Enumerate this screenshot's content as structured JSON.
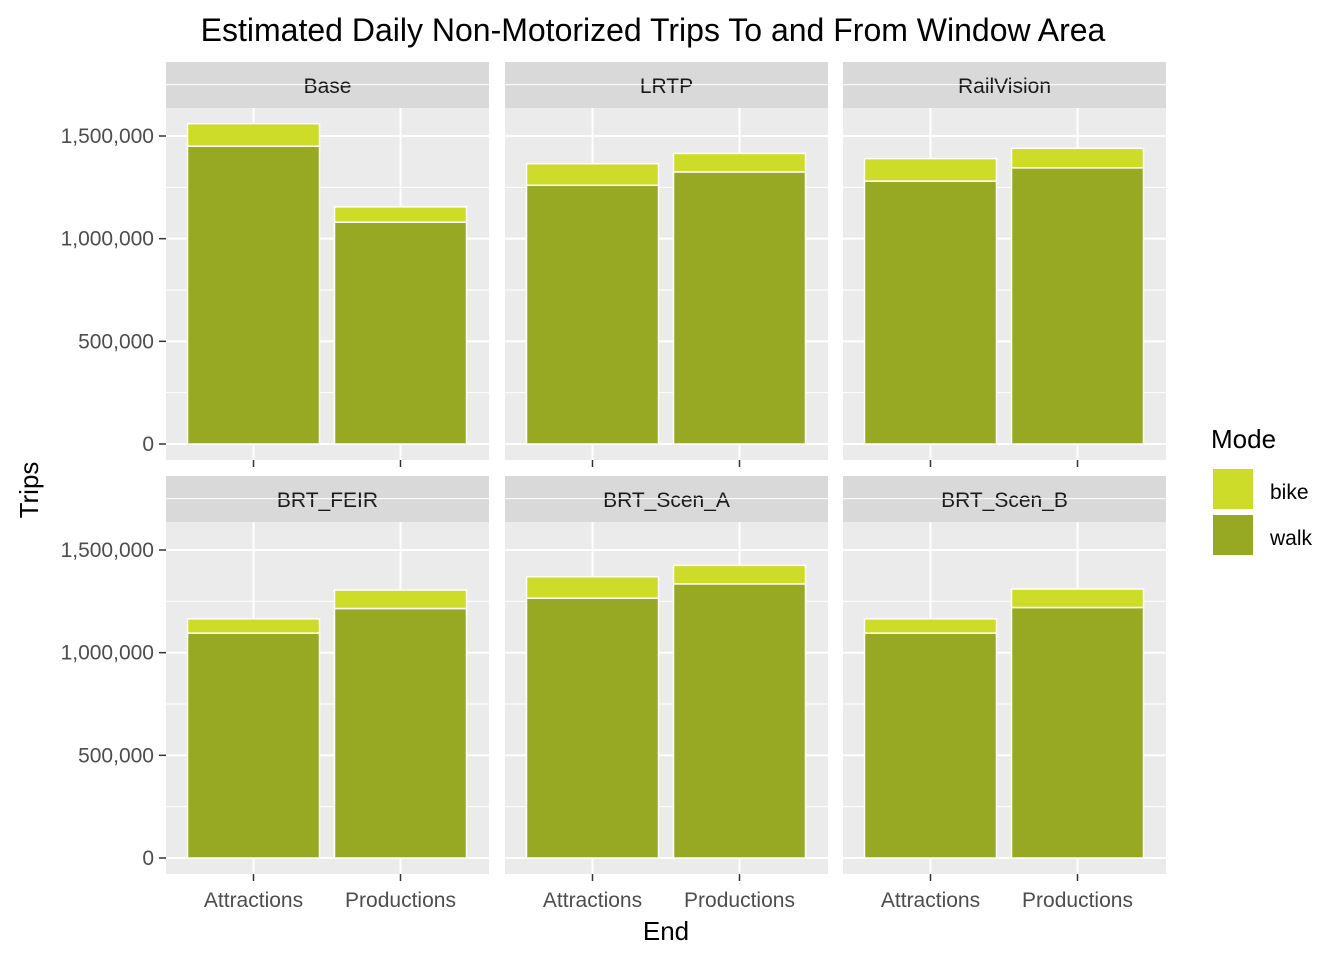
{
  "chart_data": {
    "type": "bar",
    "stacked": true,
    "title": "Estimated Daily Non-Motorized Trips To and From Window Area",
    "xlabel": "End",
    "ylabel": "Trips",
    "ylim": [
      0,
      1750000
    ],
    "yticks": [
      0,
      500000,
      1000000,
      1500000
    ],
    "ytick_labels": [
      "0",
      "500,000",
      "1,000,000",
      "1,500,000"
    ],
    "categories": [
      "Attractions",
      "Productions"
    ],
    "legend": {
      "title": "Mode",
      "position": "right",
      "items": [
        {
          "label": "bike",
          "color": "#cddc29"
        },
        {
          "label": "walk",
          "color": "#97a823"
        }
      ]
    },
    "colors": {
      "panel_bg": "#ebebeb",
      "strip_bg": "#d9d9d9",
      "grid": "#ffffff",
      "bike": "#cddc29",
      "walk": "#97a823"
    },
    "panels": [
      {
        "name": "Base",
        "walk": [
          1450000,
          1080000
        ],
        "bike": [
          110000,
          75000
        ]
      },
      {
        "name": "LRTP",
        "walk": [
          1260000,
          1325000
        ],
        "bike": [
          105000,
          90000
        ]
      },
      {
        "name": "RailVision",
        "walk": [
          1280000,
          1345000
        ],
        "bike": [
          110000,
          95000
        ]
      },
      {
        "name": "BRT_FEIR",
        "walk": [
          1095000,
          1215000
        ],
        "bike": [
          70000,
          90000
        ]
      },
      {
        "name": "BRT_Scen_A",
        "walk": [
          1265000,
          1335000
        ],
        "bike": [
          105000,
          90000
        ]
      },
      {
        "name": "BRT_Scen_B",
        "walk": [
          1095000,
          1220000
        ],
        "bike": [
          70000,
          90000
        ]
      }
    ]
  }
}
